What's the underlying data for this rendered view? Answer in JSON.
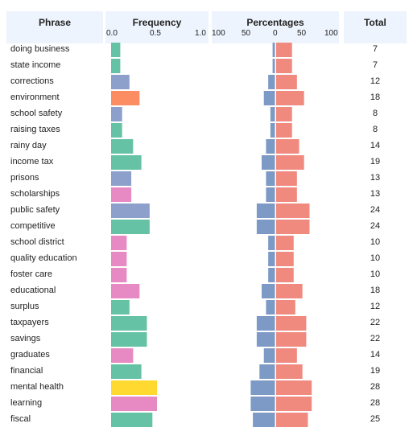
{
  "headers": {
    "phrase": "Phrase",
    "frequency": "Frequency",
    "percentages": "Percentages",
    "total": "Total"
  },
  "freq_ticks": [
    "0.0",
    "0.5",
    "1.0"
  ],
  "pct_ticks": [
    "100",
    "50",
    "0",
    "50",
    "100"
  ],
  "chart_data": {
    "type": "bar",
    "title": "",
    "xlim_frequency": [
      0,
      1
    ],
    "xlim_percentages": [
      -100,
      100
    ],
    "rows": [
      {
        "phrase": "doing business",
        "frequency": 0.1,
        "left_pct": 5,
        "right_pct": 29,
        "total": "7",
        "color": "#66c2a5"
      },
      {
        "phrase": "state income",
        "frequency": 0.1,
        "left_pct": 5,
        "right_pct": 29,
        "total": "7",
        "color": "#66c2a5"
      },
      {
        "phrase": "corrections",
        "frequency": 0.2,
        "left_pct": 13,
        "right_pct": 38,
        "total": "12",
        "color": "#8da0cb"
      },
      {
        "phrase": "environment",
        "frequency": 0.31,
        "left_pct": 21,
        "right_pct": 51,
        "total": "18",
        "color": "#fc8d62"
      },
      {
        "phrase": "school safety",
        "frequency": 0.12,
        "left_pct": 9,
        "right_pct": 29,
        "total": "8",
        "color": "#8da0cb"
      },
      {
        "phrase": "raising taxes",
        "frequency": 0.12,
        "left_pct": 9,
        "right_pct": 29,
        "total": "8",
        "color": "#66c2a5"
      },
      {
        "phrase": "rainy day",
        "frequency": 0.24,
        "left_pct": 17,
        "right_pct": 42,
        "total": "14",
        "color": "#66c2a5"
      },
      {
        "phrase": "income tax",
        "frequency": 0.33,
        "left_pct": 25,
        "right_pct": 51,
        "total": "19",
        "color": "#66c2a5"
      },
      {
        "phrase": "prisons",
        "frequency": 0.22,
        "left_pct": 17,
        "right_pct": 38,
        "total": "13",
        "color": "#8da0cb"
      },
      {
        "phrase": "scholarships",
        "frequency": 0.22,
        "left_pct": 17,
        "right_pct": 38,
        "total": "13",
        "color": "#e78ac3"
      },
      {
        "phrase": "public safety",
        "frequency": 0.42,
        "left_pct": 34,
        "right_pct": 61,
        "total": "24",
        "color": "#8da0cb"
      },
      {
        "phrase": "competitive",
        "frequency": 0.42,
        "left_pct": 34,
        "right_pct": 61,
        "total": "24",
        "color": "#66c2a5"
      },
      {
        "phrase": "school district",
        "frequency": 0.17,
        "left_pct": 13,
        "right_pct": 32,
        "total": "10",
        "color": "#e78ac3"
      },
      {
        "phrase": "quality education",
        "frequency": 0.17,
        "left_pct": 13,
        "right_pct": 32,
        "total": "10",
        "color": "#e78ac3"
      },
      {
        "phrase": "foster care",
        "frequency": 0.17,
        "left_pct": 13,
        "right_pct": 32,
        "total": "10",
        "color": "#e78ac3"
      },
      {
        "phrase": "educational",
        "frequency": 0.31,
        "left_pct": 25,
        "right_pct": 48,
        "total": "18",
        "color": "#e78ac3"
      },
      {
        "phrase": "surplus",
        "frequency": 0.2,
        "left_pct": 17,
        "right_pct": 35,
        "total": "12",
        "color": "#66c2a5"
      },
      {
        "phrase": "taxpayers",
        "frequency": 0.39,
        "left_pct": 34,
        "right_pct": 55,
        "total": "22",
        "color": "#66c2a5"
      },
      {
        "phrase": "savings",
        "frequency": 0.39,
        "left_pct": 34,
        "right_pct": 55,
        "total": "22",
        "color": "#66c2a5"
      },
      {
        "phrase": "graduates",
        "frequency": 0.24,
        "left_pct": 21,
        "right_pct": 38,
        "total": "14",
        "color": "#e78ac3"
      },
      {
        "phrase": "financial",
        "frequency": 0.33,
        "left_pct": 29,
        "right_pct": 48,
        "total": "19",
        "color": "#66c2a5"
      },
      {
        "phrase": "mental health",
        "frequency": 0.5,
        "left_pct": 45,
        "right_pct": 65,
        "total": "28",
        "color": "#ffd92f"
      },
      {
        "phrase": "learning",
        "frequency": 0.5,
        "left_pct": 45,
        "right_pct": 65,
        "total": "28",
        "color": "#e78ac3"
      },
      {
        "phrase": "fiscal",
        "frequency": 0.45,
        "left_pct": 41,
        "right_pct": 58,
        "total": "25",
        "color": "#66c2a5"
      }
    ],
    "left_color": "#7d99c6",
    "right_color": "#f08a7e"
  }
}
